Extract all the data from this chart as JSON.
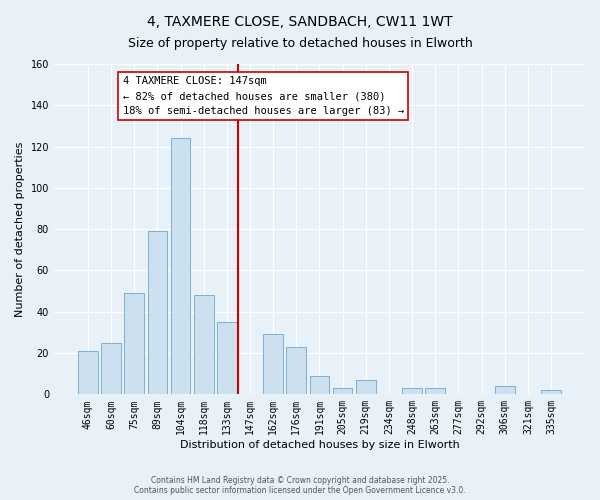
{
  "title": "4, TAXMERE CLOSE, SANDBACH, CW11 1WT",
  "subtitle": "Size of property relative to detached houses in Elworth",
  "xlabel": "Distribution of detached houses by size in Elworth",
  "ylabel": "Number of detached properties",
  "bar_color": "#cce0f0",
  "bar_edge_color": "#7ab0d4",
  "background_color": "#e8f0f8",
  "grid_color": "#ffffff",
  "categories": [
    "46sqm",
    "60sqm",
    "75sqm",
    "89sqm",
    "104sqm",
    "118sqm",
    "133sqm",
    "147sqm",
    "162sqm",
    "176sqm",
    "191sqm",
    "205sqm",
    "219sqm",
    "234sqm",
    "248sqm",
    "263sqm",
    "277sqm",
    "292sqm",
    "306sqm",
    "321sqm",
    "335sqm"
  ],
  "values": [
    21,
    25,
    49,
    79,
    124,
    48,
    35,
    0,
    29,
    23,
    9,
    3,
    7,
    0,
    3,
    3,
    0,
    0,
    4,
    0,
    2
  ],
  "vline_index": 7,
  "vline_color": "#cc0000",
  "annotation_title": "4 TAXMERE CLOSE: 147sqm",
  "annotation_line1": "← 82% of detached houses are smaller (380)",
  "annotation_line2": "18% of semi-detached houses are larger (83) →",
  "annotation_box_facecolor": "#ffffff",
  "annotation_box_edgecolor": "#cc0000",
  "ylim": [
    0,
    160
  ],
  "yticks": [
    0,
    20,
    40,
    60,
    80,
    100,
    120,
    140,
    160
  ],
  "footer1": "Contains HM Land Registry data © Crown copyright and database right 2025.",
  "footer2": "Contains public sector information licensed under the Open Government Licence v3.0.",
  "title_fontsize": 10,
  "subtitle_fontsize": 9,
  "axis_label_fontsize": 8,
  "tick_fontsize": 7,
  "annotation_fontsize": 7.5
}
